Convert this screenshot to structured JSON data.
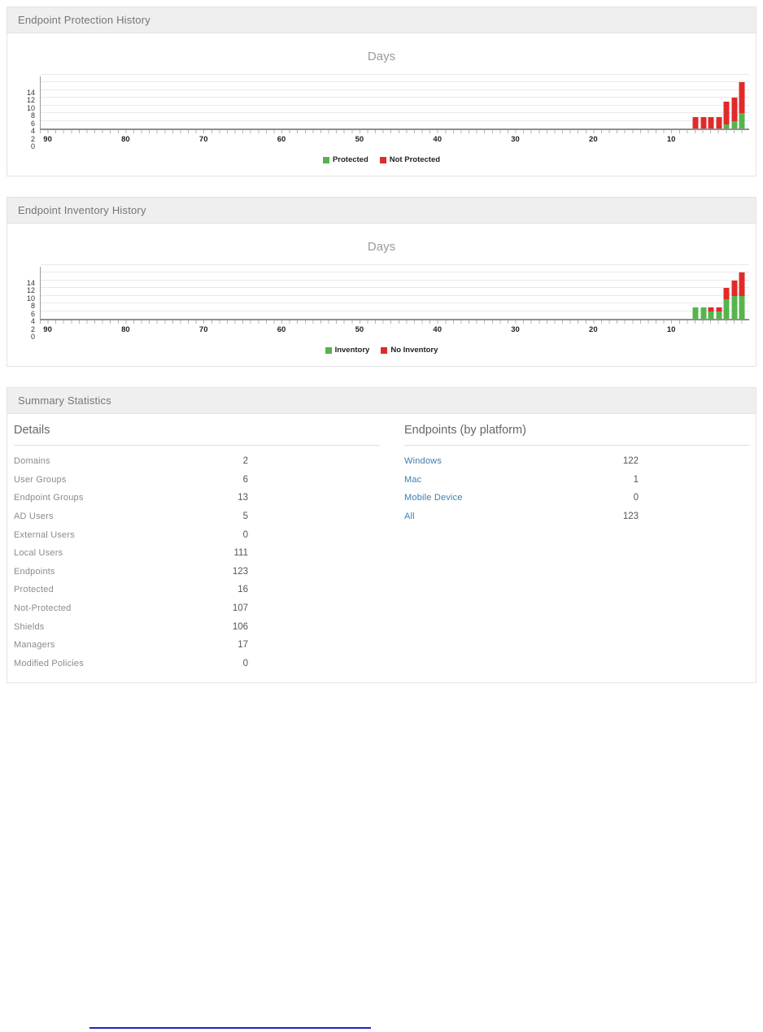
{
  "panels": {
    "protection": {
      "title": "Endpoint Protection History"
    },
    "inventory": {
      "title": "Endpoint Inventory History"
    },
    "summary": {
      "title": "Summary Statistics",
      "details": {
        "heading": "Details",
        "rows": [
          {
            "label": "Domains",
            "value": "2"
          },
          {
            "label": "User Groups",
            "value": "6"
          },
          {
            "label": "Endpoint Groups",
            "value": "13"
          },
          {
            "label": "AD Users",
            "value": "5"
          },
          {
            "label": "External Users",
            "value": "0"
          },
          {
            "label": "Local Users",
            "value": "111"
          },
          {
            "label": "Endpoints",
            "value": "123"
          },
          {
            "label": "Protected",
            "value": "16"
          },
          {
            "label": "Not-Protected",
            "value": "107"
          },
          {
            "label": "Shields",
            "value": "106"
          },
          {
            "label": "Managers",
            "value": "17"
          },
          {
            "label": "Modified Policies",
            "value": "0"
          }
        ]
      },
      "platforms": {
        "heading": "Endpoints (by platform)",
        "rows": [
          {
            "label": "Windows",
            "value": "122"
          },
          {
            "label": "Mac",
            "value": "1"
          },
          {
            "label": "Mobile Device",
            "value": "0"
          },
          {
            "label": "All",
            "value": "123"
          }
        ]
      }
    }
  },
  "colors": {
    "protected_green": "#56b44c",
    "not_protected_red": "#e02a2a",
    "link_blue": "#3d7eae",
    "panel_header_bg": "#efefef"
  },
  "chart_data": [
    {
      "id": "endpoint-protection-history",
      "type": "bar",
      "stacked": true,
      "title": "Days",
      "x_unit": "days ago",
      "x": [
        7,
        6,
        5,
        4,
        3,
        2,
        1
      ],
      "x_axis": {
        "min": 0,
        "max": 91,
        "ticks": [
          90,
          80,
          70,
          60,
          50,
          40,
          30,
          20,
          10
        ]
      },
      "y_axis": {
        "min": 0,
        "max": 14,
        "ticks": [
          0,
          2,
          4,
          6,
          8,
          10,
          12,
          14
        ]
      },
      "grid": true,
      "legend_position": "bottom",
      "series": [
        {
          "name": "Protected",
          "color": "#56b44c",
          "values": [
            0,
            0,
            0,
            0,
            1,
            2,
            4
          ]
        },
        {
          "name": "Not Protected",
          "color": "#e02a2a",
          "values": [
            3,
            3,
            3,
            3,
            6,
            6,
            8
          ]
        }
      ]
    },
    {
      "id": "endpoint-inventory-history",
      "type": "bar",
      "stacked": true,
      "title": "Days",
      "x_unit": "days ago",
      "x": [
        7,
        6,
        5,
        4,
        3,
        2,
        1
      ],
      "x_axis": {
        "min": 0,
        "max": 91,
        "ticks": [
          90,
          80,
          70,
          60,
          50,
          40,
          30,
          20,
          10
        ]
      },
      "y_axis": {
        "min": 0,
        "max": 14,
        "ticks": [
          0,
          2,
          4,
          6,
          8,
          10,
          12,
          14
        ]
      },
      "grid": true,
      "legend_position": "bottom",
      "series": [
        {
          "name": "Inventory",
          "color": "#56b44c",
          "values": [
            3,
            3,
            2,
            2,
            5,
            6,
            6
          ]
        },
        {
          "name": "No Inventory",
          "color": "#e02a2a",
          "values": [
            0,
            0,
            1,
            1,
            3,
            4,
            6
          ]
        }
      ]
    }
  ]
}
